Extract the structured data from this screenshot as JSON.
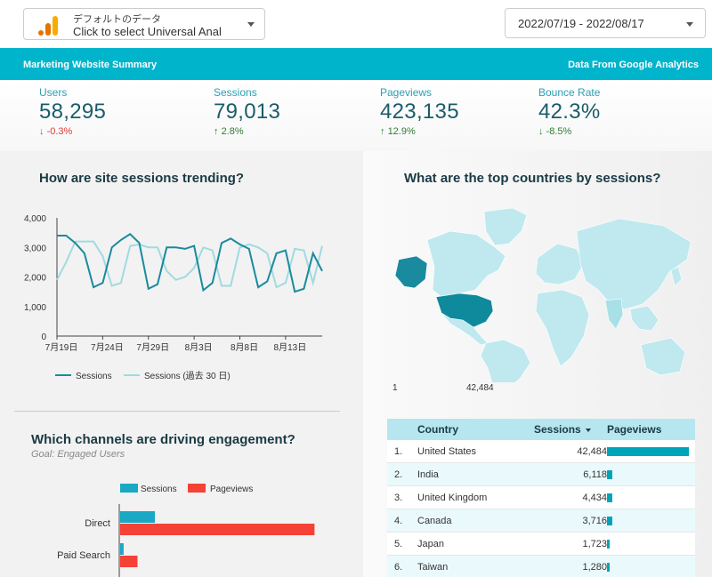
{
  "datasource": {
    "line1": "デフォルトのデータ",
    "line2": "Click to select Universal Anal",
    "logo": "analytics-logo-icon"
  },
  "date_range": "2022/07/19 - 2022/08/17",
  "banner": {
    "left": "Marketing Website Summary",
    "right": "Data From Google Analytics"
  },
  "kpis": [
    {
      "label": "Users",
      "value": "58,295",
      "change": "-0.3%",
      "dir": "down"
    },
    {
      "label": "Sessions",
      "value": "79,013",
      "change": "2.8%",
      "dir": "up"
    },
    {
      "label": "Pageviews",
      "value": "423,135",
      "change": "12.9%",
      "dir": "up"
    },
    {
      "label": "Bounce Rate",
      "value": "42.3%",
      "change": "-8.5%",
      "dir": "down"
    }
  ],
  "trend": {
    "title": "How are site sessions trending?",
    "legend": [
      "Sessions",
      "Sessions (過去 30 日)"
    ]
  },
  "map": {
    "title": "What are the top countries by sessions?",
    "scale_min": "1",
    "scale_max": "42,484"
  },
  "channels": {
    "title": "Which channels are driving engagement?",
    "subtitle": "Goal: Engaged Users",
    "legend": [
      "Sessions",
      "Pageviews"
    ]
  },
  "table": {
    "headers": {
      "country": "Country",
      "sessions": "Sessions",
      "pageviews": "Pageviews"
    },
    "rows": [
      {
        "num": "1.",
        "country": "United States",
        "sessions": "42,484",
        "pv_share": 1.0
      },
      {
        "num": "2.",
        "country": "India",
        "sessions": "6,118",
        "pv_share": 0.06
      },
      {
        "num": "3.",
        "country": "United Kingdom",
        "sessions": "4,434",
        "pv_share": 0.06
      },
      {
        "num": "4.",
        "country": "Canada",
        "sessions": "3,716",
        "pv_share": 0.06
      },
      {
        "num": "5.",
        "country": "Japan",
        "sessions": "1,723",
        "pv_share": 0.02
      },
      {
        "num": "6.",
        "country": "Taiwan",
        "sessions": "1,280",
        "pv_share": 0.02
      }
    ]
  },
  "colors": {
    "accent": "#00b4cc",
    "series_main": "#1a8a9e",
    "series_prev": "#9fdbe0",
    "pageviews": "#f44336",
    "sessions_bar": "#1aa8c4"
  },
  "chart_data": [
    {
      "type": "line",
      "title": "How are site sessions trending?",
      "x": [
        "7月19日",
        "7月20日",
        "7月21日",
        "7月22日",
        "7月23日",
        "7月24日",
        "7月25日",
        "7月26日",
        "7月27日",
        "7月28日",
        "7月29日",
        "7月30日",
        "7月31日",
        "8月1日",
        "8月2日",
        "8月3日",
        "8月4日",
        "8月5日",
        "8月6日",
        "8月7日",
        "8月8日",
        "8月9日",
        "8月10日",
        "8月11日",
        "8月12日",
        "8月13日",
        "8月14日",
        "8月15日",
        "8月16日",
        "8月17日"
      ],
      "xticks": [
        "7月19日",
        "7月24日",
        "7月29日",
        "8月3日",
        "8月8日",
        "8月13日"
      ],
      "yticks": [
        "0",
        "1,000",
        "2,000",
        "3,000",
        "4,000"
      ],
      "ylim": [
        0,
        4000
      ],
      "series": [
        {
          "name": "Sessions",
          "values": [
            3400,
            3400,
            3150,
            2800,
            1650,
            1800,
            3000,
            3250,
            3450,
            3150,
            1600,
            1750,
            3000,
            3000,
            2950,
            3050,
            1550,
            1800,
            3150,
            3300,
            3100,
            2950,
            1650,
            1850,
            2800,
            2900,
            1500,
            1600,
            2800,
            2200
          ]
        },
        {
          "name": "Sessions (過去 30 日)",
          "values": [
            1900,
            2500,
            3200,
            3200,
            3200,
            2700,
            1700,
            1800,
            3050,
            3100,
            3000,
            3000,
            2200,
            1900,
            2000,
            2300,
            3000,
            2900,
            1700,
            1700,
            3000,
            3100,
            3000,
            2800,
            1650,
            1800,
            2950,
            2900,
            1800,
            3050
          ]
        }
      ]
    },
    {
      "type": "bar",
      "title": "Which channels are driving engagement?",
      "categories": [
        "Direct",
        "Paid Search"
      ],
      "series": [
        {
          "name": "Sessions",
          "values": [
            1.0,
            0.1
          ]
        },
        {
          "name": "Pageviews",
          "values": [
            5.6,
            0.5
          ]
        }
      ]
    }
  ]
}
